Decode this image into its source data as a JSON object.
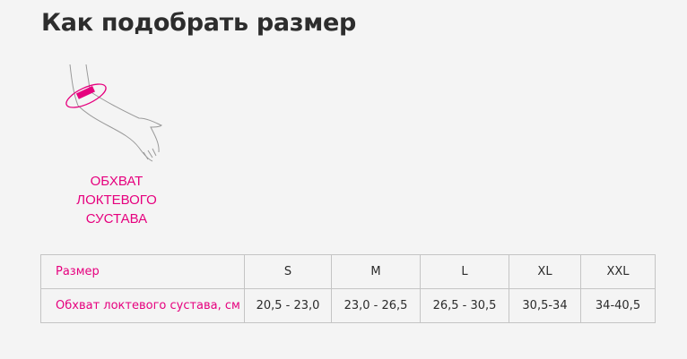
{
  "title": "Как подобрать размер",
  "illustration": {
    "icon": "arm-elbow-measure-icon",
    "accent": "#e6007e"
  },
  "caption": [
    "ОБХВАТ",
    "ЛОКТЕВОГО",
    "СУСТАВА"
  ],
  "table": {
    "header_label": "Размер",
    "sizes": [
      "S",
      "M",
      "L",
      "XL",
      "XXL"
    ],
    "row_label": "Обхват локтевого сустава, см",
    "values": [
      "20,5 - 23,0",
      "23,0 - 26,5",
      "26,5 - 30,5",
      "30,5-34",
      "34-40,5"
    ]
  }
}
